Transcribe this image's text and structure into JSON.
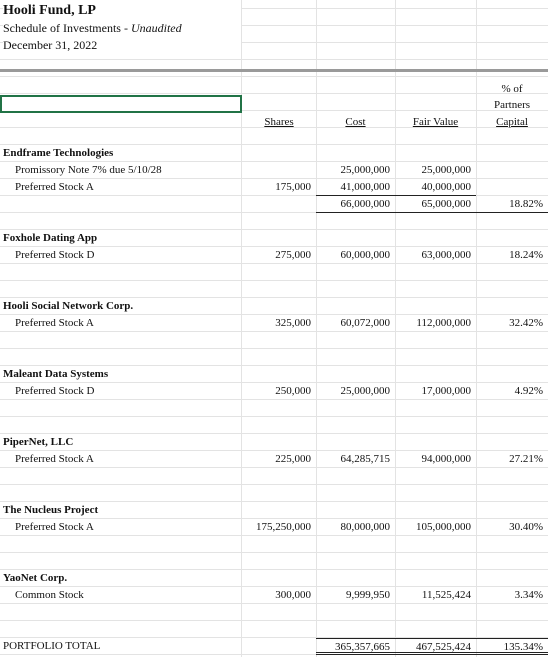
{
  "header": {
    "title": "Hooli Fund, LP",
    "subtitle": "Schedule of Investments -",
    "subtitle_note": "Unaudited",
    "date": "December 31, 2022"
  },
  "columns": {
    "pct_line1": "% of",
    "pct_line2": "Partners",
    "shares": "Shares",
    "cost": "Cost",
    "fair_value": "Fair Value",
    "capital": "Capital"
  },
  "holdings": [
    {
      "company": "Endframe Technologies",
      "positions": [
        {
          "description": "Promissory Note 7% due 5/10/28",
          "cost": "25,000,000",
          "fair_value": "25,000,000"
        },
        {
          "description": "Preferred Stock A",
          "shares": "175,000",
          "cost": "41,000,000",
          "fair_value": "40,000,000"
        }
      ],
      "subtotal": {
        "cost": "66,000,000",
        "fair_value": "65,000,000"
      },
      "pct_capital": "18.82%"
    },
    {
      "company": "Foxhole Dating App",
      "positions": [
        {
          "description": "Preferred Stock D",
          "shares": "275,000",
          "cost": "60,000,000",
          "fair_value": "63,000,000"
        }
      ],
      "pct_capital": "18.24%"
    },
    {
      "company": "Hooli Social Network Corp.",
      "positions": [
        {
          "description": "Preferred Stock A",
          "shares": "325,000",
          "cost": "60,072,000",
          "fair_value": "112,000,000"
        }
      ],
      "pct_capital": "32.42%"
    },
    {
      "company": "Maleant Data Systems",
      "positions": [
        {
          "description": "Preferred Stock D",
          "shares": "250,000",
          "cost": "25,000,000",
          "fair_value": "17,000,000"
        }
      ],
      "pct_capital": "4.92%"
    },
    {
      "company": "PiperNet, LLC",
      "positions": [
        {
          "description": "Preferred Stock A",
          "shares": "225,000",
          "cost": "64,285,715",
          "fair_value": "94,000,000"
        }
      ],
      "pct_capital": "27.21%"
    },
    {
      "company": "The Nucleus Project",
      "positions": [
        {
          "description": "Preferred Stock A",
          "shares": "175,250,000",
          "cost": "80,000,000",
          "fair_value": "105,000,000"
        }
      ],
      "pct_capital": "30.40%"
    },
    {
      "company": "YaoNet Corp.",
      "positions": [
        {
          "description": "Common Stock",
          "shares": "300,000",
          "cost": "9,999,950",
          "fair_value": "11,525,424"
        }
      ],
      "pct_capital": "3.34%"
    }
  ],
  "total": {
    "label": "PORTFOLIO TOTAL",
    "cost": "365,357,665",
    "fair_value": "467,525,424",
    "pct_capital": "135.34%"
  }
}
